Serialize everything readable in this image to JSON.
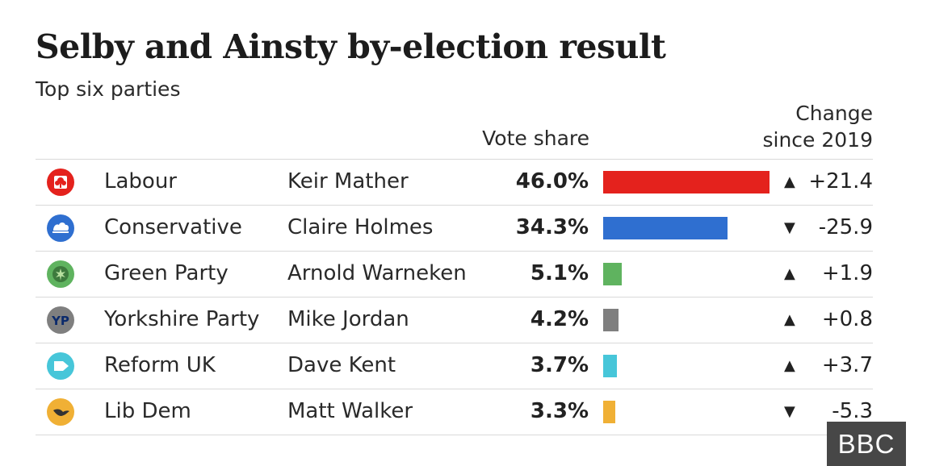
{
  "title": "Selby and Ainsty by-election result",
  "subtitle": "Top six parties",
  "headers": {
    "vote_share": "Vote share",
    "change_line1": "Change",
    "change_line2": "since 2019"
  },
  "watermark": "BBC",
  "chart_data": {
    "type": "bar",
    "title": "Selby and Ainsty by-election result",
    "subtitle": "Top six parties",
    "xlabel": "Vote share",
    "unit": "%",
    "xlim": [
      0,
      46.0
    ],
    "categories": [
      "Labour",
      "Conservative",
      "Green Party",
      "Yorkshire Party",
      "Reform UK",
      "Lib Dem"
    ],
    "values": [
      46.0,
      34.3,
      5.1,
      4.2,
      3.7,
      3.3
    ],
    "rows": [
      {
        "party": "Labour",
        "candidate": "Keir Mather",
        "share": 46.0,
        "share_label": "46.0%",
        "change": 21.4,
        "change_label": "+21.4",
        "direction": "up",
        "color": "#e4221d",
        "icon": "labour-rose-logo"
      },
      {
        "party": "Conservative",
        "candidate": "Claire Holmes",
        "share": 34.3,
        "share_label": "34.3%",
        "change": -25.9,
        "change_label": "-25.9",
        "direction": "down",
        "color": "#2f6fd0",
        "icon": "conservative-tree-logo"
      },
      {
        "party": "Green Party",
        "candidate": "Arnold Warneken",
        "share": 5.1,
        "share_label": "5.1%",
        "change": 1.9,
        "change_label": "+1.9",
        "direction": "up",
        "color": "#5fb35f",
        "icon": "green-party-logo"
      },
      {
        "party": "Yorkshire Party",
        "candidate": "Mike Jordan",
        "share": 4.2,
        "share_label": "4.2%",
        "change": 0.8,
        "change_label": "+0.8",
        "direction": "up",
        "color": "#7f7f7f",
        "icon": "yorkshire-party-yp-logo"
      },
      {
        "party": "Reform UK",
        "candidate": "Dave Kent",
        "share": 3.7,
        "share_label": "3.7%",
        "change": 3.7,
        "change_label": "+3.7",
        "direction": "up",
        "color": "#47c6d9",
        "icon": "reform-uk-arrow-logo"
      },
      {
        "party": "Lib Dem",
        "candidate": "Matt Walker",
        "share": 3.3,
        "share_label": "3.3%",
        "change": -5.3,
        "change_label": "-5.3",
        "direction": "down",
        "color": "#f0b035",
        "icon": "lib-dem-bird-logo"
      }
    ]
  }
}
